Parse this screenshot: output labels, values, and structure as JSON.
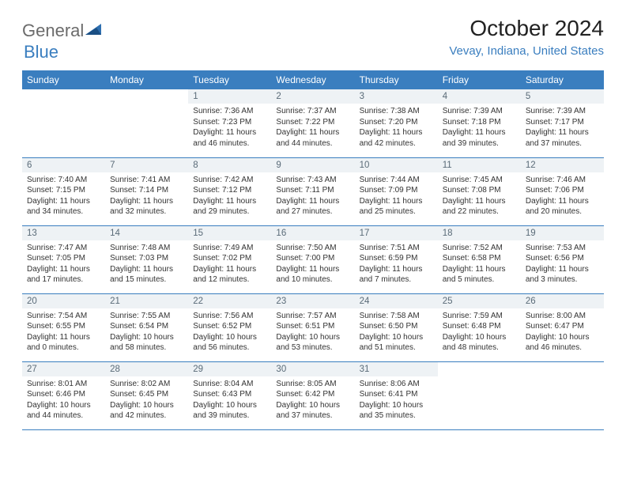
{
  "brand": {
    "part1": "General",
    "part2": "Blue"
  },
  "title": "October 2024",
  "location": "Vevay, Indiana, United States",
  "colors": {
    "header_bg": "#3a7ebf",
    "header_text": "#ffffff",
    "daynum_bg": "#eef2f5",
    "daynum_text": "#5a6b78",
    "border": "#3a7ebf",
    "location_text": "#3a7ebf",
    "logo_gray": "#6b6b6b"
  },
  "days_of_week": [
    "Sunday",
    "Monday",
    "Tuesday",
    "Wednesday",
    "Thursday",
    "Friday",
    "Saturday"
  ],
  "weeks": [
    [
      null,
      null,
      {
        "n": "1",
        "sunrise": "Sunrise: 7:36 AM",
        "sunset": "Sunset: 7:23 PM",
        "day1": "Daylight: 11 hours",
        "day2": "and 46 minutes."
      },
      {
        "n": "2",
        "sunrise": "Sunrise: 7:37 AM",
        "sunset": "Sunset: 7:22 PM",
        "day1": "Daylight: 11 hours",
        "day2": "and 44 minutes."
      },
      {
        "n": "3",
        "sunrise": "Sunrise: 7:38 AM",
        "sunset": "Sunset: 7:20 PM",
        "day1": "Daylight: 11 hours",
        "day2": "and 42 minutes."
      },
      {
        "n": "4",
        "sunrise": "Sunrise: 7:39 AM",
        "sunset": "Sunset: 7:18 PM",
        "day1": "Daylight: 11 hours",
        "day2": "and 39 minutes."
      },
      {
        "n": "5",
        "sunrise": "Sunrise: 7:39 AM",
        "sunset": "Sunset: 7:17 PM",
        "day1": "Daylight: 11 hours",
        "day2": "and 37 minutes."
      }
    ],
    [
      {
        "n": "6",
        "sunrise": "Sunrise: 7:40 AM",
        "sunset": "Sunset: 7:15 PM",
        "day1": "Daylight: 11 hours",
        "day2": "and 34 minutes."
      },
      {
        "n": "7",
        "sunrise": "Sunrise: 7:41 AM",
        "sunset": "Sunset: 7:14 PM",
        "day1": "Daylight: 11 hours",
        "day2": "and 32 minutes."
      },
      {
        "n": "8",
        "sunrise": "Sunrise: 7:42 AM",
        "sunset": "Sunset: 7:12 PM",
        "day1": "Daylight: 11 hours",
        "day2": "and 29 minutes."
      },
      {
        "n": "9",
        "sunrise": "Sunrise: 7:43 AM",
        "sunset": "Sunset: 7:11 PM",
        "day1": "Daylight: 11 hours",
        "day2": "and 27 minutes."
      },
      {
        "n": "10",
        "sunrise": "Sunrise: 7:44 AM",
        "sunset": "Sunset: 7:09 PM",
        "day1": "Daylight: 11 hours",
        "day2": "and 25 minutes."
      },
      {
        "n": "11",
        "sunrise": "Sunrise: 7:45 AM",
        "sunset": "Sunset: 7:08 PM",
        "day1": "Daylight: 11 hours",
        "day2": "and 22 minutes."
      },
      {
        "n": "12",
        "sunrise": "Sunrise: 7:46 AM",
        "sunset": "Sunset: 7:06 PM",
        "day1": "Daylight: 11 hours",
        "day2": "and 20 minutes."
      }
    ],
    [
      {
        "n": "13",
        "sunrise": "Sunrise: 7:47 AM",
        "sunset": "Sunset: 7:05 PM",
        "day1": "Daylight: 11 hours",
        "day2": "and 17 minutes."
      },
      {
        "n": "14",
        "sunrise": "Sunrise: 7:48 AM",
        "sunset": "Sunset: 7:03 PM",
        "day1": "Daylight: 11 hours",
        "day2": "and 15 minutes."
      },
      {
        "n": "15",
        "sunrise": "Sunrise: 7:49 AM",
        "sunset": "Sunset: 7:02 PM",
        "day1": "Daylight: 11 hours",
        "day2": "and 12 minutes."
      },
      {
        "n": "16",
        "sunrise": "Sunrise: 7:50 AM",
        "sunset": "Sunset: 7:00 PM",
        "day1": "Daylight: 11 hours",
        "day2": "and 10 minutes."
      },
      {
        "n": "17",
        "sunrise": "Sunrise: 7:51 AM",
        "sunset": "Sunset: 6:59 PM",
        "day1": "Daylight: 11 hours",
        "day2": "and 7 minutes."
      },
      {
        "n": "18",
        "sunrise": "Sunrise: 7:52 AM",
        "sunset": "Sunset: 6:58 PM",
        "day1": "Daylight: 11 hours",
        "day2": "and 5 minutes."
      },
      {
        "n": "19",
        "sunrise": "Sunrise: 7:53 AM",
        "sunset": "Sunset: 6:56 PM",
        "day1": "Daylight: 11 hours",
        "day2": "and 3 minutes."
      }
    ],
    [
      {
        "n": "20",
        "sunrise": "Sunrise: 7:54 AM",
        "sunset": "Sunset: 6:55 PM",
        "day1": "Daylight: 11 hours",
        "day2": "and 0 minutes."
      },
      {
        "n": "21",
        "sunrise": "Sunrise: 7:55 AM",
        "sunset": "Sunset: 6:54 PM",
        "day1": "Daylight: 10 hours",
        "day2": "and 58 minutes."
      },
      {
        "n": "22",
        "sunrise": "Sunrise: 7:56 AM",
        "sunset": "Sunset: 6:52 PM",
        "day1": "Daylight: 10 hours",
        "day2": "and 56 minutes."
      },
      {
        "n": "23",
        "sunrise": "Sunrise: 7:57 AM",
        "sunset": "Sunset: 6:51 PM",
        "day1": "Daylight: 10 hours",
        "day2": "and 53 minutes."
      },
      {
        "n": "24",
        "sunrise": "Sunrise: 7:58 AM",
        "sunset": "Sunset: 6:50 PM",
        "day1": "Daylight: 10 hours",
        "day2": "and 51 minutes."
      },
      {
        "n": "25",
        "sunrise": "Sunrise: 7:59 AM",
        "sunset": "Sunset: 6:48 PM",
        "day1": "Daylight: 10 hours",
        "day2": "and 48 minutes."
      },
      {
        "n": "26",
        "sunrise": "Sunrise: 8:00 AM",
        "sunset": "Sunset: 6:47 PM",
        "day1": "Daylight: 10 hours",
        "day2": "and 46 minutes."
      }
    ],
    [
      {
        "n": "27",
        "sunrise": "Sunrise: 8:01 AM",
        "sunset": "Sunset: 6:46 PM",
        "day1": "Daylight: 10 hours",
        "day2": "and 44 minutes."
      },
      {
        "n": "28",
        "sunrise": "Sunrise: 8:02 AM",
        "sunset": "Sunset: 6:45 PM",
        "day1": "Daylight: 10 hours",
        "day2": "and 42 minutes."
      },
      {
        "n": "29",
        "sunrise": "Sunrise: 8:04 AM",
        "sunset": "Sunset: 6:43 PM",
        "day1": "Daylight: 10 hours",
        "day2": "and 39 minutes."
      },
      {
        "n": "30",
        "sunrise": "Sunrise: 8:05 AM",
        "sunset": "Sunset: 6:42 PM",
        "day1": "Daylight: 10 hours",
        "day2": "and 37 minutes."
      },
      {
        "n": "31",
        "sunrise": "Sunrise: 8:06 AM",
        "sunset": "Sunset: 6:41 PM",
        "day1": "Daylight: 10 hours",
        "day2": "and 35 minutes."
      },
      null,
      null
    ]
  ]
}
